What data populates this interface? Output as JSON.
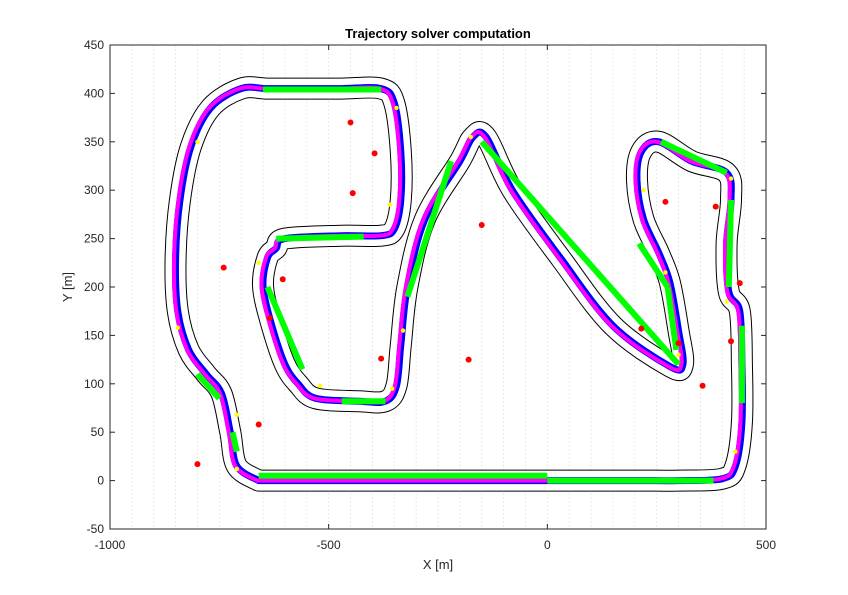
{
  "chart_data": {
    "type": "line",
    "title": "Trajectory solver computation",
    "xlabel": "X [m]",
    "ylabel": "Y [m]",
    "xlim": [
      -1000,
      500
    ],
    "ylim": [
      -50,
      450
    ],
    "xticks": [
      -1000,
      -500,
      0,
      500
    ],
    "yticks": [
      -50,
      0,
      50,
      100,
      150,
      200,
      250,
      300,
      350,
      400,
      450
    ],
    "xticklabels": [
      "-1000",
      "-500",
      "0",
      "500"
    ],
    "yticklabels": [
      "-50",
      "0",
      "50",
      "100",
      "150",
      "200",
      "250",
      "300",
      "350",
      "400",
      "450"
    ],
    "grid": "vertical dotted lines every 50 m",
    "colors": {
      "boundary": "#000000",
      "trajectory": "#0000ff",
      "curve_segments": "#ff00ff",
      "straight_segments": "#00ff00",
      "waypoints": "#ffff00",
      "markers": "#ff0000"
    },
    "series": [
      {
        "role": "track centerline trajectory",
        "points": [
          [
            -660,
            0
          ],
          [
            -710,
            15
          ],
          [
            -725,
            50
          ],
          [
            -745,
            90
          ],
          [
            -780,
            110
          ],
          [
            -820,
            135
          ],
          [
            -845,
            175
          ],
          [
            -850,
            230
          ],
          [
            -840,
            290
          ],
          [
            -815,
            345
          ],
          [
            -770,
            385
          ],
          [
            -700,
            405
          ],
          [
            -640,
            405
          ],
          [
            -560,
            405
          ],
          [
            -470,
            405
          ],
          [
            -380,
            405
          ],
          [
            -350,
            390
          ],
          [
            -335,
            340
          ],
          [
            -335,
            290
          ],
          [
            -350,
            260
          ],
          [
            -380,
            253
          ],
          [
            -470,
            253
          ],
          [
            -600,
            250
          ],
          [
            -620,
            240
          ],
          [
            -640,
            230
          ],
          [
            -650,
            200
          ],
          [
            -630,
            160
          ],
          [
            -600,
            120
          ],
          [
            -570,
            100
          ],
          [
            -530,
            85
          ],
          [
            -430,
            82
          ],
          [
            -370,
            82
          ],
          [
            -345,
            98
          ],
          [
            -335,
            140
          ],
          [
            -320,
            200
          ],
          [
            -280,
            270
          ],
          [
            -200,
            330
          ],
          [
            -170,
            355
          ],
          [
            -140,
            355
          ],
          [
            -80,
            300
          ],
          [
            30,
            230
          ],
          [
            150,
            160
          ],
          [
            280,
            118
          ],
          [
            310,
            120
          ],
          [
            300,
            155
          ],
          [
            280,
            205
          ],
          [
            255,
            235
          ],
          [
            220,
            270
          ],
          [
            205,
            310
          ],
          [
            215,
            340
          ],
          [
            255,
            350
          ],
          [
            330,
            330
          ],
          [
            410,
            318
          ],
          [
            420,
            290
          ],
          [
            410,
            245
          ],
          [
            415,
            195
          ],
          [
            440,
            175
          ],
          [
            445,
            120
          ],
          [
            445,
            60
          ],
          [
            430,
            15
          ],
          [
            400,
            2
          ],
          [
            300,
            0
          ],
          [
            200,
            0
          ],
          [
            0,
            0
          ],
          [
            -200,
            0
          ],
          [
            -400,
            0
          ],
          [
            -660,
            0
          ]
        ]
      },
      {
        "role": "straight segments",
        "segments": [
          [
            [
              -660,
              5
            ],
            [
              0,
              5
            ]
          ],
          [
            [
              0,
              0
            ],
            [
              380,
              0
            ]
          ],
          [
            [
              -650,
              404
            ],
            [
              -380,
              404
            ]
          ],
          [
            [
              -620,
              250
            ],
            [
              -420,
              252
            ]
          ],
          [
            [
              -640,
              200
            ],
            [
              -560,
              115
            ]
          ],
          [
            [
              -470,
              82
            ],
            [
              -370,
              82
            ]
          ],
          [
            [
              -320,
              190
            ],
            [
              -220,
              330
            ]
          ],
          [
            [
              -150,
              350
            ],
            [
              300,
              120
            ]
          ],
          [
            [
              260,
              350
            ],
            [
              410,
              318
            ]
          ],
          [
            [
              210,
              245
            ],
            [
              275,
              200
            ]
          ],
          [
            [
              275,
              200
            ],
            [
              295,
              135
            ]
          ],
          [
            [
              420,
              290
            ],
            [
              415,
              200
            ]
          ],
          [
            [
              445,
              160
            ],
            [
              445,
              80
            ]
          ],
          [
            [
              -800,
              110
            ],
            [
              -750,
              85
            ]
          ],
          [
            [
              -720,
              50
            ],
            [
              -710,
              30
            ]
          ]
        ]
      }
    ],
    "waypoints": [
      [
        -800,
        350
      ],
      [
        -845,
        158
      ],
      [
        -710,
        68
      ],
      [
        -710,
        12
      ],
      [
        -660,
        225
      ],
      [
        -520,
        98
      ],
      [
        -345,
        385
      ],
      [
        -360,
        285
      ],
      [
        -355,
        95
      ],
      [
        -330,
        155
      ],
      [
        -175,
        355
      ],
      [
        220,
        300
      ],
      [
        270,
        215
      ],
      [
        300,
        130
      ],
      [
        420,
        312
      ],
      [
        410,
        185
      ],
      [
        430,
        30
      ]
    ],
    "red_markers": [
      [
        -450,
        370
      ],
      [
        -395,
        338
      ],
      [
        -445,
        297
      ],
      [
        -740,
        220
      ],
      [
        -605,
        208
      ],
      [
        -635,
        168
      ],
      [
        -380,
        126
      ],
      [
        -180,
        125
      ],
      [
        -150,
        264
      ],
      [
        -660,
        58
      ],
      [
        -800,
        17
      ],
      [
        270,
        288
      ],
      [
        385,
        283
      ],
      [
        440,
        204
      ],
      [
        215,
        157
      ],
      [
        300,
        142
      ],
      [
        355,
        98
      ],
      [
        420,
        144
      ]
    ]
  }
}
